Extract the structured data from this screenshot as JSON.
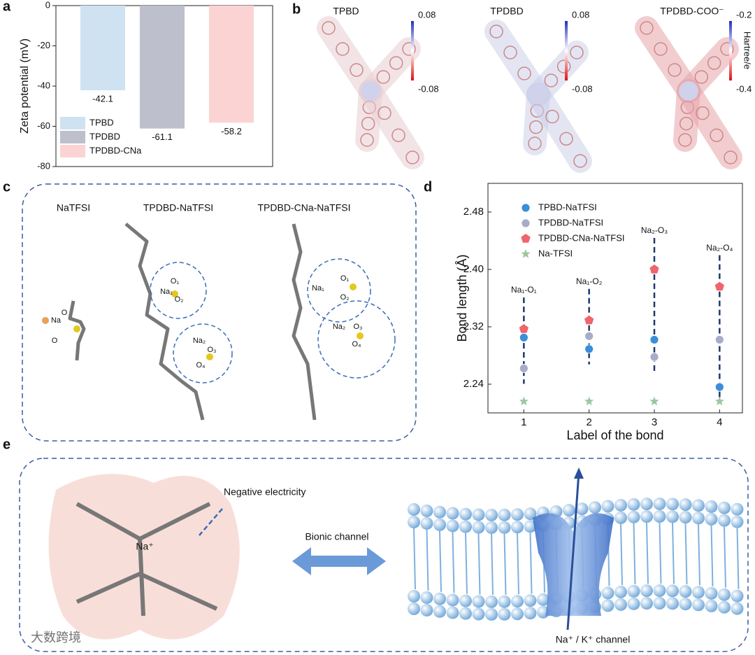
{
  "panel_labels": [
    "a",
    "b",
    "c",
    "d",
    "e"
  ],
  "chart_data": [
    {
      "type": "bar",
      "ylabel": "Zeta potential (mV)",
      "categories": [
        "TPBD",
        "TPDBD",
        "TPDBD-CNa"
      ],
      "values": [
        -42.1,
        -61.1,
        -58.2
      ],
      "colors": [
        "#cfe2f2",
        "#bdbfcc",
        "#fcd3d3"
      ],
      "ylim": [
        -80,
        0
      ],
      "yticks": [
        0,
        -20,
        -40,
        -60,
        -80
      ],
      "legend": "lower left"
    },
    {
      "type": "scatter",
      "xlabel": "Label of the bond",
      "ylabel": "Bond length (Å)",
      "x": [
        1,
        2,
        3,
        4
      ],
      "series": [
        {
          "name": "TPBD-NaTFSI",
          "color": "#3b8fd8",
          "marker": "circle",
          "values": [
            2.305,
            2.289,
            2.302,
            2.236
          ]
        },
        {
          "name": "TPDBD-NaTFSI",
          "color": "#a8acc8",
          "marker": "circle",
          "values": [
            2.262,
            2.307,
            2.278,
            2.302
          ]
        },
        {
          "name": "TPDBD-CNa-NaTFSI",
          "color": "#f0646c",
          "marker": "pentagon",
          "values": [
            2.317,
            2.329,
            2.4,
            2.376
          ]
        },
        {
          "name": "Na-TFSI",
          "color": "#9cc7a2",
          "marker": "star",
          "values": [
            2.216,
            2.216,
            2.216,
            2.216
          ]
        }
      ],
      "annotations": [
        "Na₁-O₁",
        "Na₁-O₂",
        "Na₂-O₃",
        "Na₂-O₄"
      ],
      "xlim": [
        0.45,
        4.35
      ],
      "ylim": [
        2.2,
        2.52
      ],
      "xticks": [
        1,
        2,
        3,
        4
      ],
      "yticks": [
        2.24,
        2.32,
        {
          "value": 2.4,
          "label": "2.40"
        },
        2.48
      ],
      "legend": "upper left"
    }
  ],
  "panel_b": {
    "maps": [
      {
        "title": "TPBD",
        "max": "0.08",
        "min": "-0.08"
      },
      {
        "title": "TPDBD",
        "max": "0.08",
        "min": "-0.08"
      },
      {
        "title": "TPDBD-COO⁻",
        "max": "-0.2",
        "min": "-0.4"
      }
    ],
    "unit": "Hartree/e"
  },
  "panel_c": {
    "titles": [
      "NaTFSI",
      "TPDBD-NaTFSI",
      "TPDBD-CNa-NaTFSI"
    ],
    "atoms": [
      [
        "Na",
        "O",
        "O"
      ],
      [
        "Na₁",
        "O₁",
        "O₂",
        "Na₂",
        "O₃",
        "O₄"
      ],
      [
        "Na₁",
        "O₁",
        "O₂",
        "Na₂",
        "O₃",
        "O₄"
      ]
    ]
  },
  "panel_e": {
    "left_label": "Negative electricity",
    "middle_label": "Bionic channel",
    "ion": "Na⁺",
    "right_label": "Na⁺ / K⁺ channel"
  },
  "watermark": "大数跨境"
}
